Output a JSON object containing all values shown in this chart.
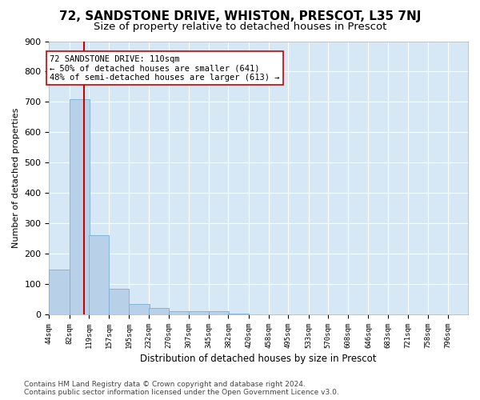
{
  "title": "72, SANDSTONE DRIVE, WHISTON, PRESCOT, L35 7NJ",
  "subtitle": "Size of property relative to detached houses in Prescot",
  "xlabel": "Distribution of detached houses by size in Prescot",
  "ylabel": "Number of detached properties",
  "bin_labels": [
    "44sqm",
    "82sqm",
    "119sqm",
    "157sqm",
    "195sqm",
    "232sqm",
    "270sqm",
    "307sqm",
    "345sqm",
    "382sqm",
    "420sqm",
    "458sqm",
    "495sqm",
    "533sqm",
    "570sqm",
    "608sqm",
    "646sqm",
    "683sqm",
    "721sqm",
    "758sqm",
    "796sqm"
  ],
  "bin_edges": [
    44,
    82,
    119,
    157,
    195,
    232,
    270,
    307,
    345,
    382,
    420,
    458,
    495,
    533,
    570,
    608,
    646,
    683,
    721,
    758,
    796
  ],
  "bar_heights": [
    148,
    710,
    260,
    85,
    35,
    20,
    12,
    12,
    10,
    2,
    1,
    1,
    0,
    0,
    0,
    0,
    0,
    0,
    0,
    0
  ],
  "bar_color": "#b8d0e8",
  "bar_edge_color": "#7aaed4",
  "property_size": 110,
  "red_line_color": "#cc0000",
  "annotation_text": "72 SANDSTONE DRIVE: 110sqm\n← 50% of detached houses are smaller (641)\n48% of semi-detached houses are larger (613) →",
  "annotation_box_color": "#ffffff",
  "annotation_box_edge": "#cc0000",
  "ylim": [
    0,
    900
  ],
  "yticks": [
    0,
    100,
    200,
    300,
    400,
    500,
    600,
    700,
    800,
    900
  ],
  "background_color": "#d6e8f5",
  "footer_text": "Contains HM Land Registry data © Crown copyright and database right 2024.\nContains public sector information licensed under the Open Government Licence v3.0.",
  "title_fontsize": 11,
  "subtitle_fontsize": 9.5,
  "annotation_fontsize": 7.5,
  "footer_fontsize": 6.5
}
